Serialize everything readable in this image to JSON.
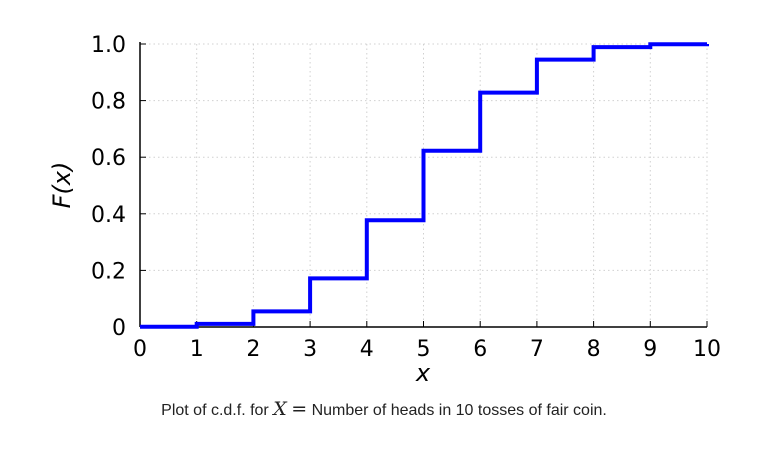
{
  "chart_data": {
    "type": "line",
    "step": true,
    "x": [
      0,
      1,
      2,
      3,
      4,
      5,
      6,
      7,
      8,
      9,
      10
    ],
    "y": [
      0.001,
      0.011,
      0.055,
      0.172,
      0.377,
      0.623,
      0.828,
      0.945,
      0.989,
      0.999,
      1.0
    ],
    "xlim": [
      0,
      10
    ],
    "ylim": [
      0,
      1.0
    ],
    "x_ticks": [
      "0",
      "1",
      "2",
      "3",
      "4",
      "5",
      "6",
      "7",
      "8",
      "9",
      "10"
    ],
    "y_ticks": [
      "0",
      "0.2",
      "0.4",
      "0.6",
      "0.8",
      "1.0"
    ],
    "xlabel": "x",
    "ylabel": "F(x)",
    "grid": true,
    "line_color": "#0000ff",
    "caption": {
      "prefix": "Plot of c.d.f. for",
      "variable": "X",
      "equals": "=",
      "text": "Number of heads in 10 tosses of fair coin."
    }
  }
}
